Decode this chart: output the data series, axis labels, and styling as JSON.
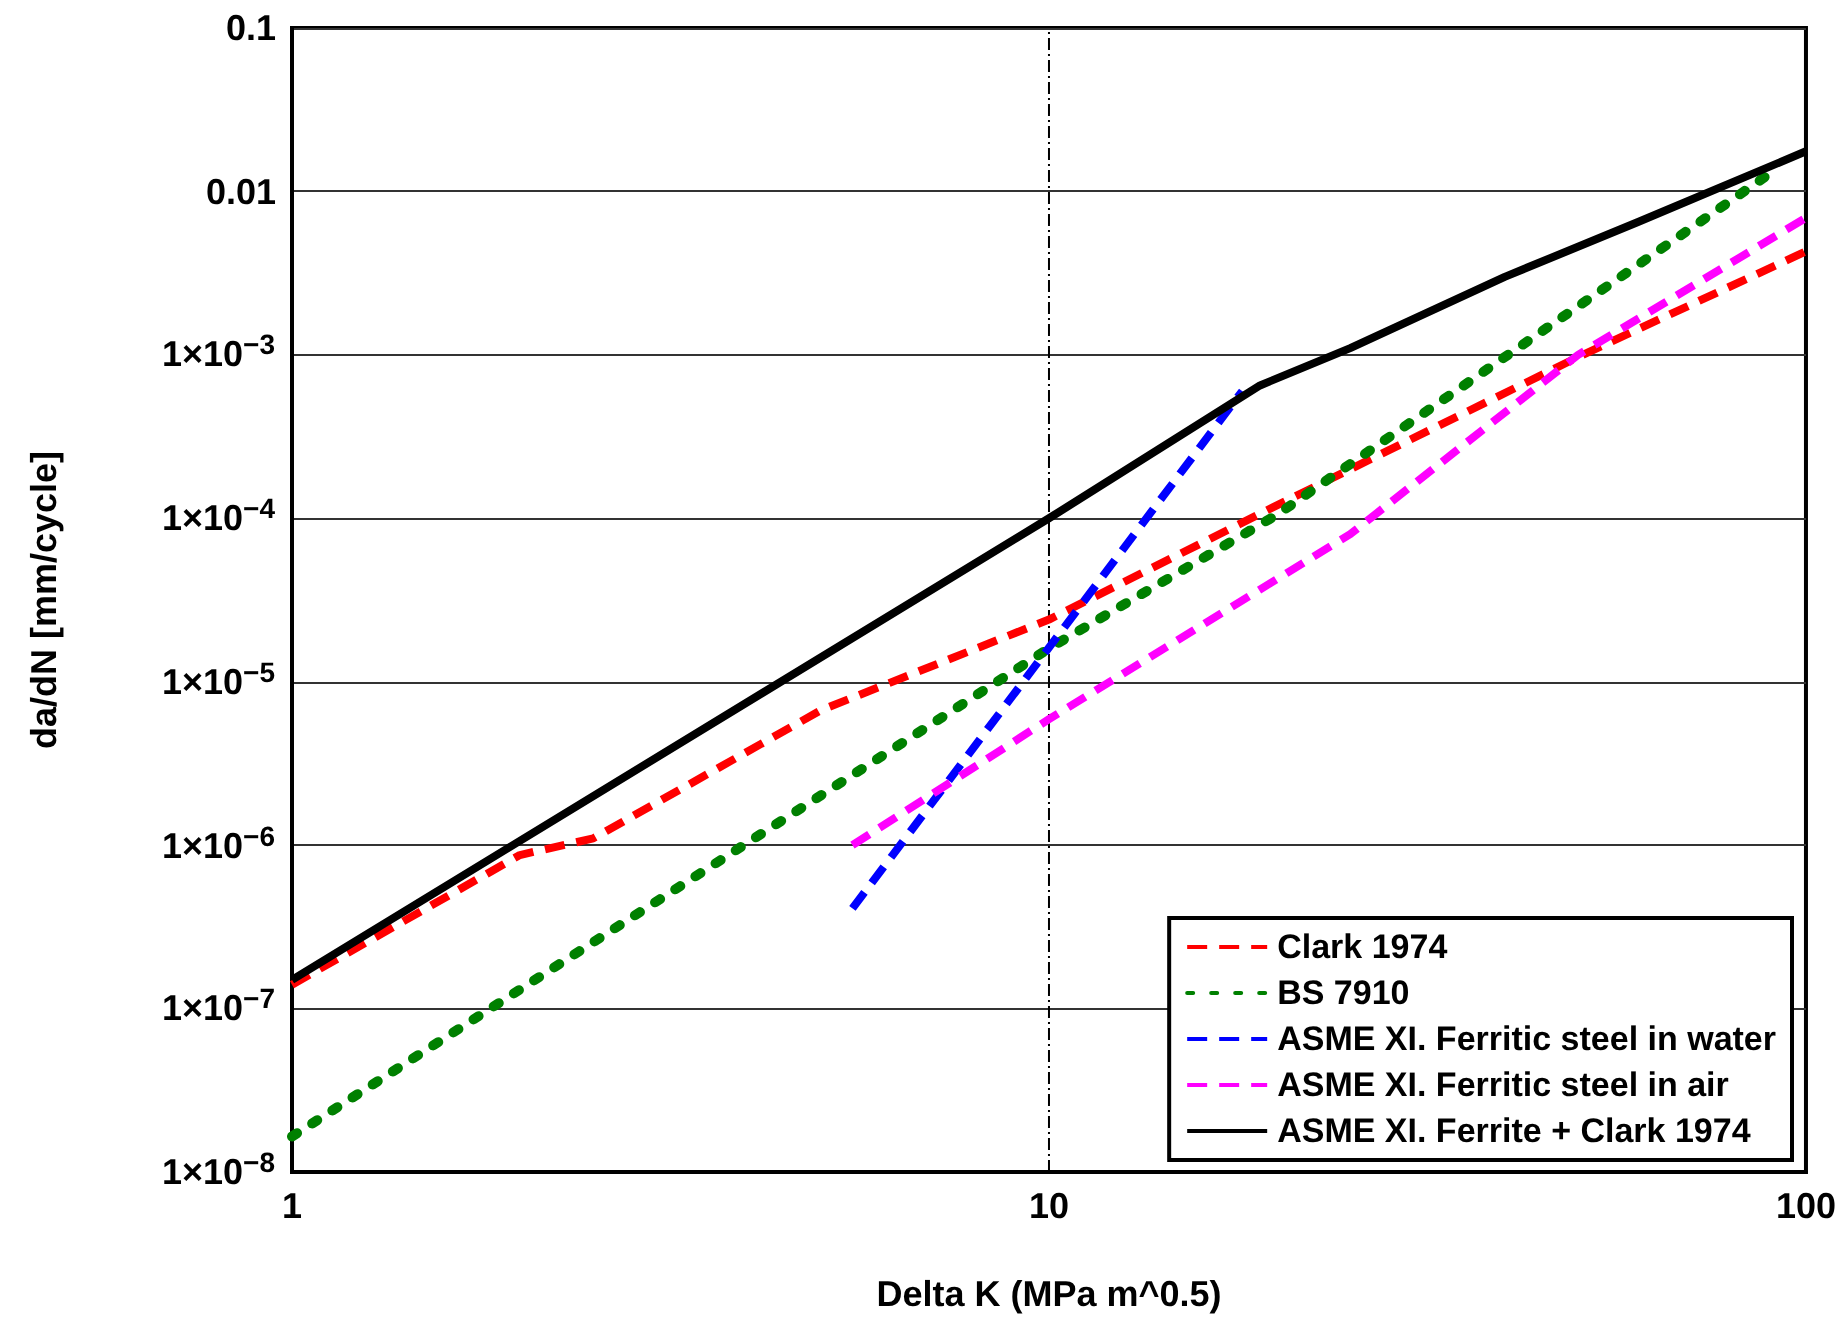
{
  "chart_data": {
    "type": "line",
    "xlabel": "Delta K (MPa m^0.5)",
    "ylabel": "da/dN [mm/cycle]",
    "log": "xy",
    "grid": "y",
    "ref_lines": [
      {
        "axis": "x",
        "value": 10,
        "color": "#000000",
        "line_style": "dashed"
      }
    ],
    "legend": "bottom right",
    "marker": "none",
    "xlim": [
      1,
      100
    ],
    "xticks": [
      1,
      10,
      100
    ],
    "ylim": [
      1e-08,
      0.1
    ],
    "yticks": [
      {
        "value": 1e-08,
        "label": "1×10$^{−8}$"
      },
      {
        "value": 1e-07,
        "label": "1×10$^{−7}$"
      },
      {
        "value": 1e-06,
        "label": "1×10$^{−6}$"
      },
      {
        "value": 1e-05,
        "label": "1×10$^{−5}$"
      },
      {
        "value": 0.0001,
        "label": "1×10$^{−4}$"
      },
      {
        "value": 0.001,
        "label": "1×10$^{−3}$"
      },
      0.01,
      0.1
    ],
    "series": [
      {
        "name": "Clark 1974",
        "color": "#ff0000",
        "line_style": "dashed",
        "x": [
          1,
          2,
          2.5,
          5,
          10,
          20,
          50,
          100
        ],
        "values": [
          1.4e-07,
          8.7e-07,
          1.1e-06,
          6.7e-06,
          2.4e-05,
          0.00012,
          0.00097,
          0.0043
        ]
      },
      {
        "name": "BS 7910",
        "color": "#008000",
        "line_style": "dotted",
        "x": [
          1,
          10,
          20,
          92
        ],
        "values": [
          1.65e-08,
          1.6e-05,
          0.000105,
          0.014
        ]
      },
      {
        "name": "ASME XI. Ferritic steel in water",
        "color": "#0000ff",
        "line_style": "dashed",
        "x": [
          5.5,
          18
        ],
        "values": [
          4.1e-07,
          0.0006
        ]
      },
      {
        "name": "ASME XI. Ferritic steel in air",
        "color": "#ff00ff",
        "line_style": "dashed",
        "x": [
          5.5,
          10,
          25,
          50,
          100
        ],
        "values": [
          1e-06,
          5.9e-06,
          8e-05,
          0.001,
          0.0069
        ]
      },
      {
        "name": "ASME XI. Ferrite + Clark 1974",
        "color": "#000000",
        "line_style": "solid",
        "x": [
          1,
          10,
          19,
          25,
          40,
          60,
          100
        ],
        "values": [
          1.5e-07,
          0.0001,
          0.00065,
          0.0011,
          0.003,
          0.0065,
          0.0176
        ]
      }
    ]
  }
}
